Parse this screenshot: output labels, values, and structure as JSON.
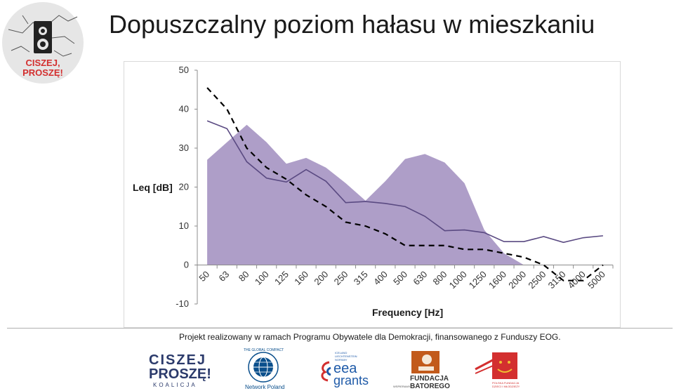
{
  "title": "Dopuszczalny poziom hałasu w mieszkaniu",
  "logo": {
    "text_line1": "CISZEJ,",
    "text_line2": "PROSZĘ!",
    "bg_color": "#e6e6e6",
    "accent_color": "#d32f2f"
  },
  "chart_data": {
    "type": "area",
    "title": "",
    "xlabel": "Frequency [Hz]",
    "ylabel": "Leq [dB]",
    "ylim": [
      -10,
      50
    ],
    "yticks": [
      "50",
      "40",
      "30",
      "20",
      "10",
      "0",
      "-10"
    ],
    "categories": [
      "50",
      "63",
      "80",
      "100",
      "125",
      "160",
      "200",
      "250",
      "315",
      "400",
      "500",
      "630",
      "800",
      "1000",
      "1250",
      "1600",
      "2000",
      "2500",
      "3150",
      "4000",
      "5000"
    ],
    "series": [
      {
        "style": "area",
        "color": "#ae9ec8",
        "values": [
          27,
          31.5,
          36,
          31.5,
          26,
          27.5,
          25,
          21,
          16.5,
          21.5,
          27.2,
          28.5,
          26.3,
          21,
          9,
          3,
          0,
          null,
          null,
          null,
          null
        ]
      },
      {
        "style": "line",
        "color": "#5a4a82",
        "values": [
          37,
          35,
          26.5,
          22.3,
          21.3,
          24.5,
          21.5,
          16,
          16.3,
          15.8,
          15,
          12.5,
          8.8,
          9,
          8.3,
          6,
          6,
          7.3,
          5.8,
          7,
          7.5
        ]
      },
      {
        "style": "dashed",
        "color": "#000000",
        "values": [
          45.5,
          40,
          30,
          25,
          22,
          18,
          15,
          11,
          10,
          8,
          5,
          5,
          5,
          4,
          4,
          3,
          2,
          0,
          -4,
          -4,
          0
        ]
      }
    ],
    "grid": false,
    "legend": "none"
  },
  "footer": {
    "text": "Projekt realizowany w ramach Programu Obywatele dla Demokracji, finansowanego z Funduszy EOG."
  },
  "sponsors": {
    "ciszej_line1": "CISZEJ",
    "ciszej_line2": "PROSZĘ!",
    "ciszej_line3": "KOALICJA",
    "global_compact_ring": "THE GLOBAL COMPACT",
    "global_compact_caption": "Network Poland",
    "eea_small1": "ICELAND",
    "eea_small2": "LIECHTENSTEIN",
    "eea_small3": "NORWAY",
    "eea_word1": "eea",
    "eea_word2": "grants",
    "batory_small": "WSPIERAMY",
    "batory_line1": "FUNDACJA",
    "batory_line2": "BATOREGO",
    "pfdim_line1": "POLSKA FUNDACJA",
    "pfdim_line2": "DZIECI I MŁODZIEŻY"
  }
}
